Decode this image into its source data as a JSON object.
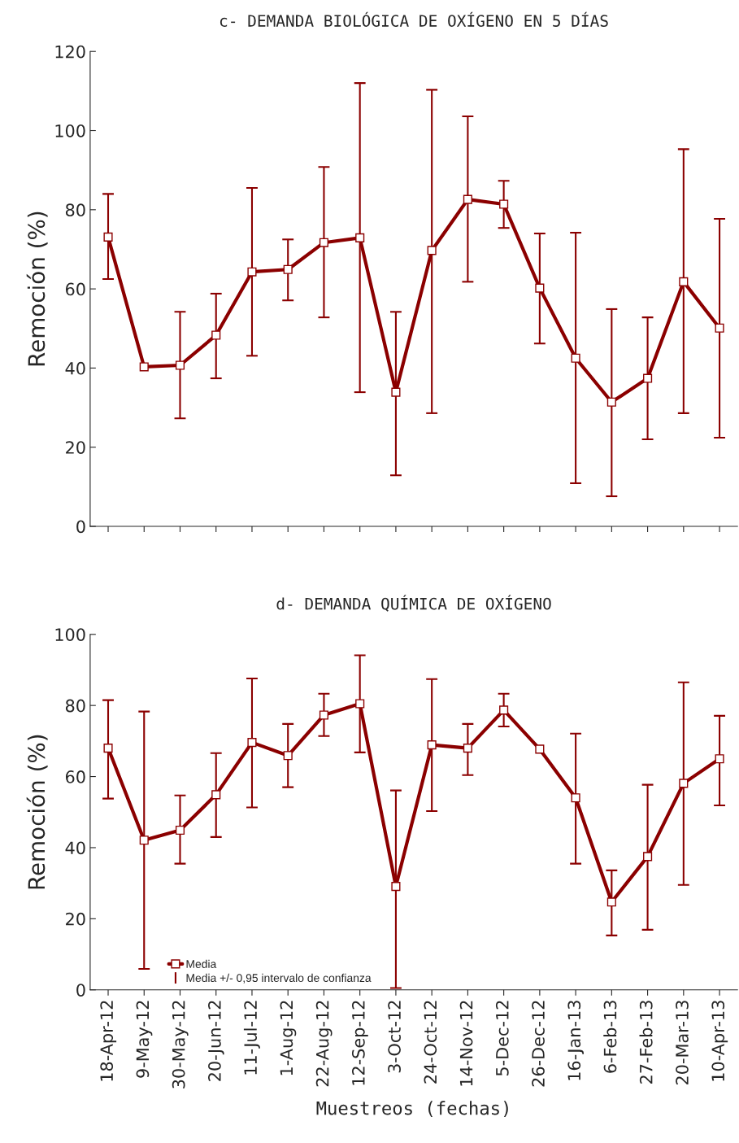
{
  "chart_data": [
    {
      "type": "line",
      "title": "c- DEMANDA BIOLÓGICA DE OXÍGENO EN 5 DÍAS",
      "ylabel": "Remoción (%)",
      "categories": [
        null,
        null,
        null,
        null,
        null,
        null,
        null,
        null,
        null,
        null,
        null,
        null,
        null,
        null,
        null,
        null,
        null,
        null
      ],
      "series": [
        {
          "color": "#8b0000",
          "values": [
            73.1,
            40.3,
            40.7,
            48.3,
            64.3,
            64.9,
            71.7,
            72.9,
            33.9,
            69.7,
            82.6,
            81.4,
            60.2,
            42.5,
            31.4,
            37.4,
            61.8,
            50.1
          ],
          "errors": [
            [
              62.5,
              84.0
            ],
            null,
            [
              27.3,
              54.2
            ],
            [
              37.4,
              58.8
            ],
            [
              43.1,
              85.5
            ],
            [
              57.1,
              72.5
            ],
            [
              52.8,
              90.8
            ],
            [
              33.9,
              112
            ],
            [
              12.9,
              54.2
            ],
            [
              28.6,
              110.3
            ],
            [
              61.8,
              103.6
            ],
            [
              75.4,
              87.3
            ],
            [
              46.2,
              74.0
            ],
            [
              10.9,
              74.2
            ],
            [
              7.6,
              54.9
            ],
            [
              22.0,
              52.8
            ],
            [
              28.6,
              95.3
            ],
            [
              22.4,
              77.7
            ]
          ]
        }
      ],
      "ylim": [
        0,
        120
      ],
      "yticks": [
        0,
        20,
        40,
        60,
        80,
        100,
        120
      ],
      "tick_labels": "y",
      "grid": false,
      "marker": "square",
      "line_style": "solid",
      "legend": false
    },
    {
      "type": "line",
      "title": "d- DEMANDA QUÍMICA DE OXÍGENO",
      "ylabel": "Remoción (%)",
      "xlabel": "Muestreos (fechas)",
      "categories": [
        "18-Apr-12",
        "9-May-12",
        "30-May-12",
        "20-Jun-12",
        "11-Jul-12",
        "1-Aug-12",
        "22-Aug-12",
        "12-Sep-12",
        "3-Oct-12",
        "24-Oct-12",
        "14-Nov-12",
        "5-Dec-12",
        "26-Dec-12",
        "16-Jan-13",
        "6-Feb-13",
        "27-Feb-13",
        "20-Mar-13",
        "10-Apr-13"
      ],
      "series": [
        {
          "name": "Media",
          "color": "#8b0000",
          "values": [
            68.0,
            42.1,
            44.9,
            54.9,
            69.6,
            65.9,
            77.3,
            80.5,
            29.1,
            68.9,
            68.0,
            78.7,
            67.7,
            54.0,
            24.7,
            37.5,
            58.1,
            65.0
          ],
          "errors": [
            [
              53.8,
              81.5
            ],
            [
              5.9,
              78.3
            ],
            [
              35.5,
              54.7
            ],
            [
              43.0,
              66.6
            ],
            [
              51.3,
              87.6
            ],
            [
              57.0,
              74.8
            ],
            [
              71.4,
              83.3
            ],
            [
              66.8,
              94.1
            ],
            [
              0.5,
              56.1
            ],
            [
              50.3,
              87.4
            ],
            [
              60.4,
              74.8
            ],
            [
              74.1,
              83.3
            ],
            null,
            [
              35.5,
              72.1
            ],
            [
              15.3,
              33.6
            ],
            [
              16.9,
              57.7
            ],
            [
              29.5,
              86.5
            ],
            [
              51.9,
              77.1
            ]
          ]
        }
      ],
      "annotations": [
        "Media +/- 0,95 intervalo de confianza"
      ],
      "ylim": [
        0,
        100
      ],
      "yticks": [
        0,
        20,
        40,
        60,
        80,
        100
      ],
      "grid": false,
      "marker": "square",
      "line_style": "solid",
      "legend": "bottom"
    }
  ]
}
